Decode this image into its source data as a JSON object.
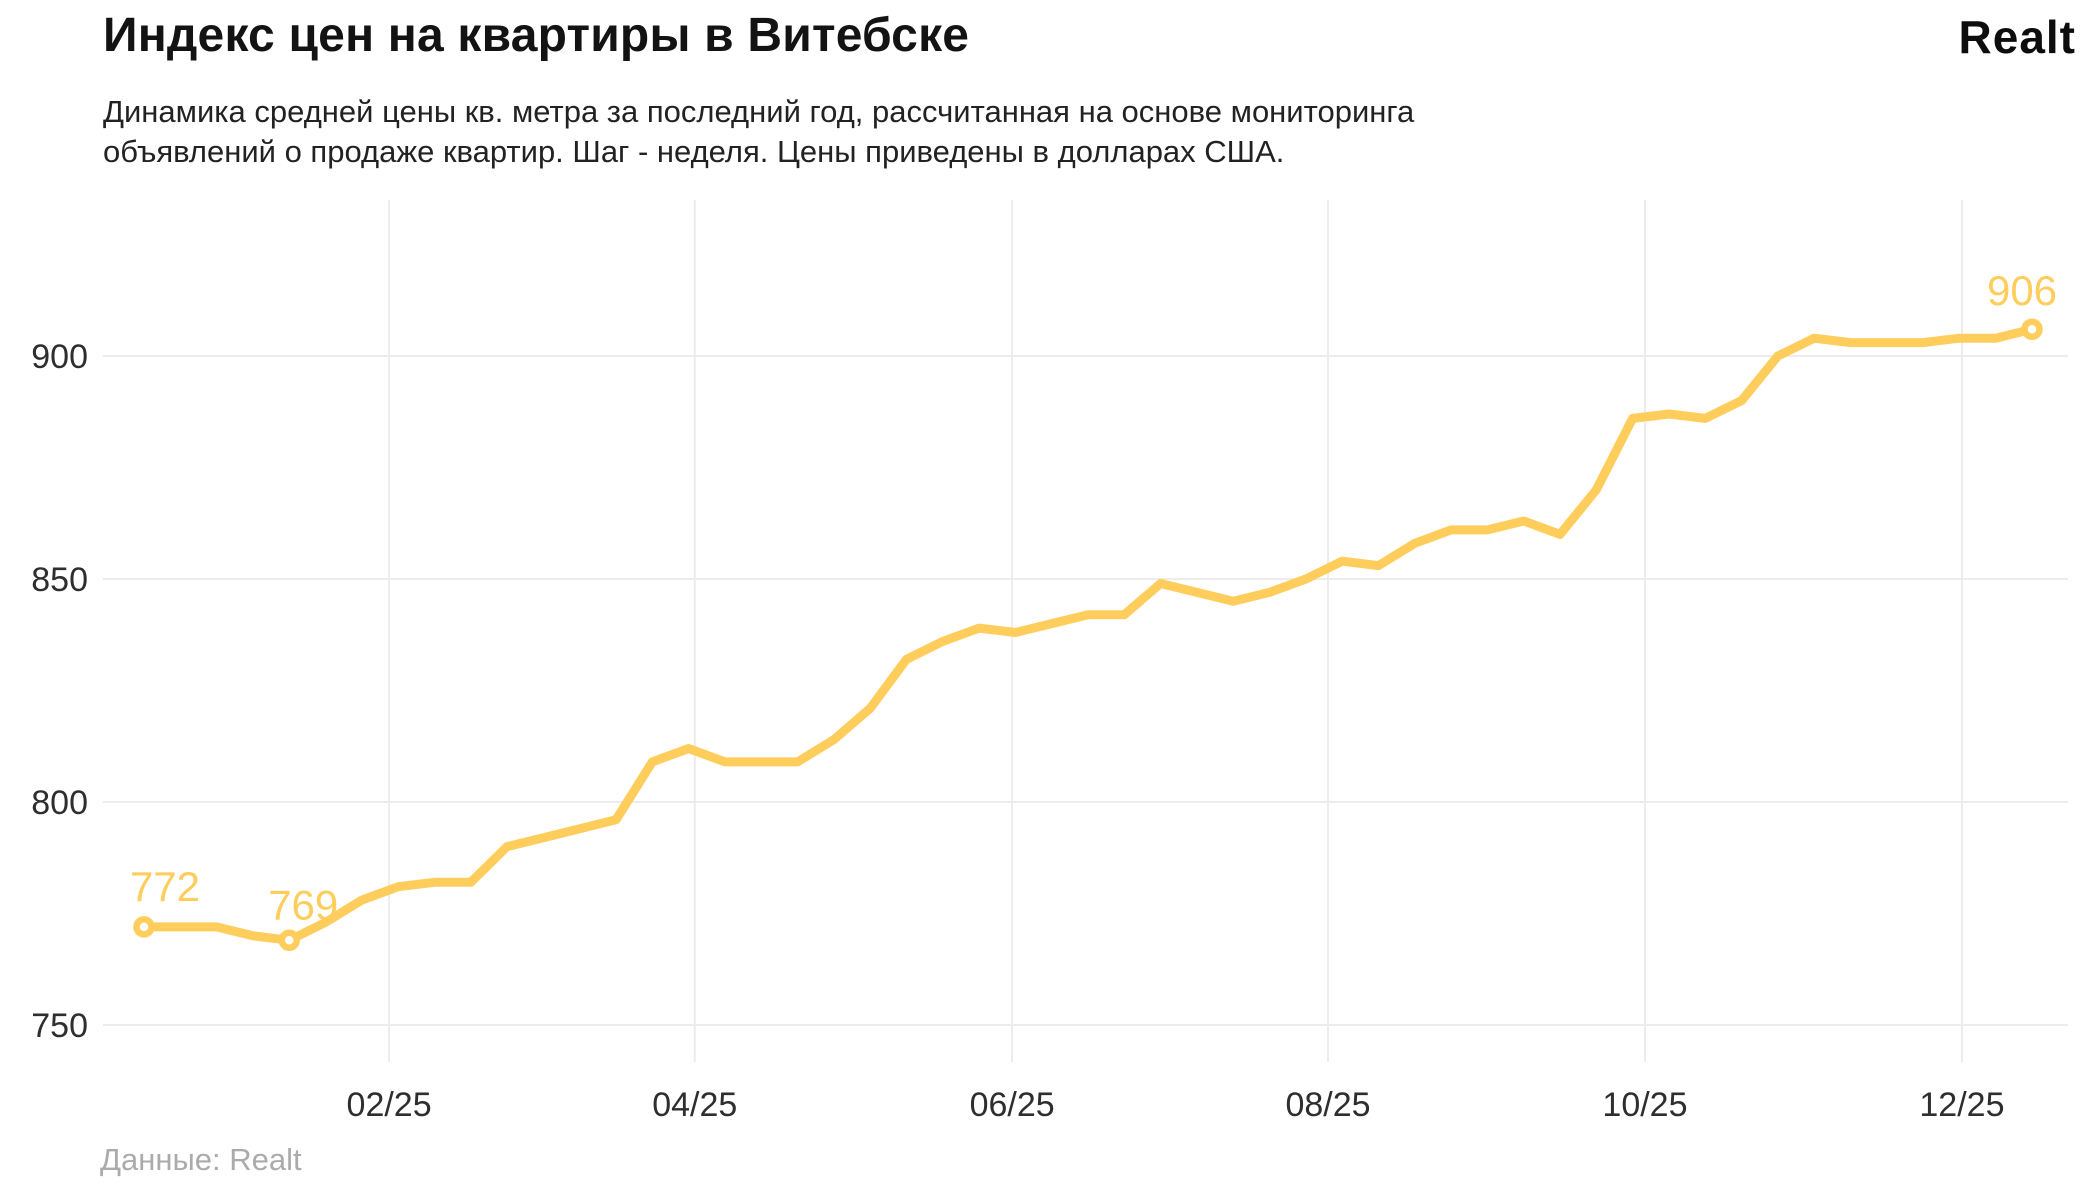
{
  "header": {
    "title": "Индекс цен на квартиры в Витебске",
    "subtitle_line1": "Динамика средней цены кв. метра за последний год, рассчитанная на основе мониторинга",
    "subtitle_line2": "объявлений о продаже квартир. Шаг - неделя. Цены приведены в долларах США.",
    "logo": "Realt"
  },
  "footer": {
    "source": "Данные: Realt"
  },
  "chart_data": {
    "type": "line",
    "title": "Индекс цен на квартиры в Витебске",
    "subtitle": "Динамика средней цены кв. метра за последний год, рассчитанная на основе мониторинга объявлений о продаже квартир. Шаг - неделя. Цены приведены в долларах США.",
    "x_unit": "week",
    "xlabel": "",
    "ylabel": "",
    "grid": true,
    "legend": false,
    "ylim": [
      738,
      915
    ],
    "y_ticks": [
      750,
      800,
      850,
      900
    ],
    "x_tick_labels": [
      "02/25",
      "04/25",
      "06/25",
      "08/25",
      "10/25",
      "12/25"
    ],
    "x_tick_weeks": [
      6.75,
      15.17,
      23.91,
      32.61,
      41.34,
      50.07
    ],
    "values": [
      772,
      772,
      772,
      770,
      769,
      773,
      778,
      781,
      782,
      782,
      790,
      792,
      794,
      796,
      809,
      812,
      809,
      809,
      809,
      814,
      821,
      832,
      836,
      839,
      838,
      840,
      842,
      842,
      849,
      847,
      845,
      847,
      850,
      854,
      853,
      858,
      861,
      861,
      863,
      860,
      870,
      886,
      887,
      886,
      890,
      900,
      904,
      903,
      903,
      903,
      904,
      904,
      906
    ],
    "annotations": [
      {
        "index": 0,
        "label": "772"
      },
      {
        "index": 4,
        "label": "769"
      },
      {
        "index": 52,
        "label": "906"
      }
    ],
    "line_color": "#FFCD5C",
    "grid_color": "#ececec"
  }
}
